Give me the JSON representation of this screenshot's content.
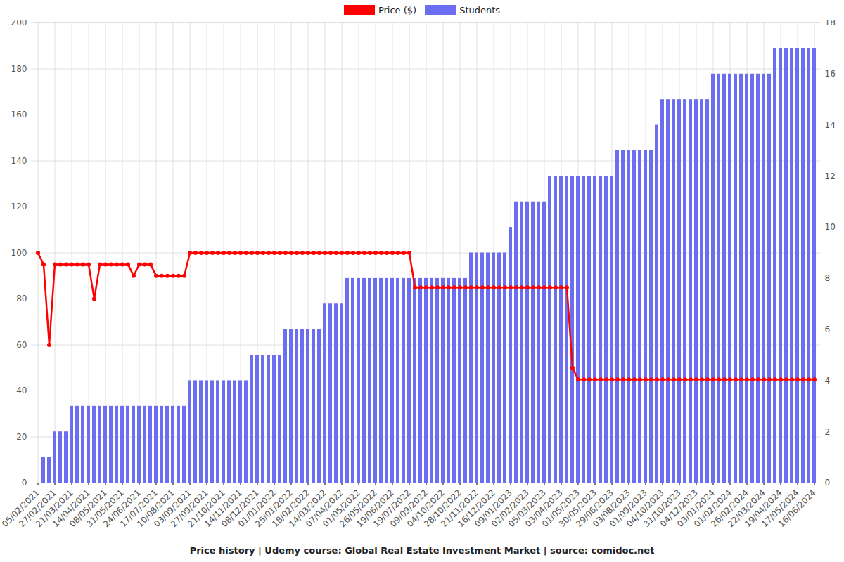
{
  "chart_data": {
    "type": "bar",
    "title": "Price history | Udemy course: Global Real Estate Investment Market | source: comidoc.net",
    "categories": [
      "05/02/2021",
      null,
      null,
      "27/02/2021",
      null,
      null,
      "21/03/2021",
      null,
      null,
      "14/04/2021",
      null,
      null,
      "08/05/2021",
      null,
      null,
      "31/05/2021",
      null,
      null,
      "24/06/2021",
      null,
      null,
      "17/07/2021",
      null,
      null,
      "10/08/2021",
      null,
      null,
      "03/09/2021",
      null,
      null,
      "27/09/2021",
      null,
      null,
      "21/10/2021",
      null,
      null,
      "14/11/2021",
      null,
      null,
      "08/12/2021",
      null,
      null,
      "01/01/2022",
      null,
      null,
      "25/01/2022",
      null,
      null,
      "18/02/2022",
      null,
      null,
      "14/03/2022",
      null,
      null,
      "07/04/2022",
      null,
      null,
      "01/05/2022",
      null,
      null,
      "26/05/2022",
      null,
      null,
      "19/06/2022",
      null,
      null,
      "19/07/2022",
      null,
      null,
      "09/09/2022",
      null,
      null,
      "04/10/2022",
      null,
      null,
      "28/10/2022",
      null,
      null,
      "21/11/2022",
      null,
      null,
      "16/12/2022",
      null,
      null,
      "09/01/2023",
      null,
      null,
      "02/02/2023",
      null,
      null,
      "05/03/2023",
      null,
      null,
      "03/04/2023",
      null,
      null,
      "01/05/2023",
      null,
      null,
      "30/05/2023",
      null,
      null,
      "29/06/2023",
      null,
      null,
      "03/08/2023",
      null,
      null,
      "01/09/2023",
      null,
      null,
      "04/10/2023",
      null,
      null,
      "31/10/2023",
      null,
      null,
      "04/12/2023",
      null,
      null,
      "03/01/2024",
      null,
      null,
      "01/02/2024",
      null,
      null,
      "26/02/2024",
      null,
      null,
      "22/03/2024",
      null,
      null,
      "19/04/2024",
      null,
      null,
      "17/05/2024",
      null,
      null,
      "16/06/2024"
    ],
    "series": [
      {
        "name": "Price ($)",
        "color": "#ff0000",
        "type": "line",
        "marker": "circle",
        "values": [
          100,
          95,
          60,
          95,
          95,
          95,
          95,
          95,
          95,
          95,
          80,
          95,
          95,
          95,
          95,
          95,
          95,
          90,
          95,
          95,
          95,
          90,
          90,
          90,
          90,
          90,
          90,
          100,
          100,
          100,
          100,
          100,
          100,
          100,
          100,
          100,
          100,
          100,
          100,
          100,
          100,
          100,
          100,
          100,
          100,
          100,
          100,
          100,
          100,
          100,
          100,
          100,
          100,
          100,
          100,
          100,
          100,
          100,
          100,
          100,
          100,
          100,
          100,
          100,
          100,
          100,
          100,
          85,
          85,
          85,
          85,
          85,
          85,
          85,
          85,
          85,
          85,
          85,
          85,
          85,
          85,
          85,
          85,
          85,
          85,
          85,
          85,
          85,
          85,
          85,
          85,
          85,
          85,
          85,
          85,
          50,
          45,
          45,
          45,
          45,
          45,
          45,
          45,
          45,
          45,
          45,
          45,
          45,
          45,
          45,
          45,
          45,
          45,
          45,
          45,
          45,
          45,
          45,
          45,
          45,
          45,
          45,
          45,
          45,
          45,
          45,
          45,
          45,
          45,
          45,
          45,
          45,
          45,
          45,
          45,
          45,
          45,
          45,
          45
        ]
      },
      {
        "name": "Students",
        "color": "#6b6ef0",
        "type": "bar",
        "axis": "y2",
        "values": [
          0,
          1,
          1,
          2,
          2,
          2,
          3,
          3,
          3,
          3,
          3,
          3,
          3,
          3,
          3,
          3,
          3,
          3,
          3,
          3,
          3,
          3,
          3,
          3,
          3,
          3,
          3,
          4,
          4,
          4,
          4,
          4,
          4,
          4,
          4,
          4,
          4,
          4,
          5,
          5,
          5,
          5,
          5,
          5,
          6,
          6,
          6,
          6,
          6,
          6,
          6,
          7,
          7,
          7,
          7,
          8,
          8,
          8,
          8,
          8,
          8,
          8,
          8,
          8,
          8,
          8,
          8,
          8,
          8,
          8,
          8,
          8,
          8,
          8,
          8,
          8,
          8,
          9,
          9,
          9,
          9,
          9,
          9,
          9,
          10,
          11,
          11,
          11,
          11,
          11,
          11,
          12,
          12,
          12,
          12,
          12,
          12,
          12,
          12,
          12,
          12,
          12,
          12,
          13,
          13,
          13,
          13,
          13,
          13,
          13,
          14,
          15,
          15,
          15,
          15,
          15,
          15,
          15,
          15,
          15,
          16,
          16,
          16,
          16,
          16,
          16,
          16,
          16,
          16,
          16,
          16,
          17,
          17,
          17,
          17,
          17,
          17,
          17,
          17
        ]
      }
    ],
    "ylim": [
      0,
      200
    ],
    "yticks": [
      0,
      20,
      40,
      60,
      80,
      100,
      120,
      140,
      160,
      180,
      200
    ],
    "y2lim": [
      0,
      18
    ],
    "y2ticks": [
      0,
      2,
      4,
      6,
      8,
      10,
      12,
      14,
      16,
      18
    ],
    "grid": true,
    "legend": "top"
  }
}
